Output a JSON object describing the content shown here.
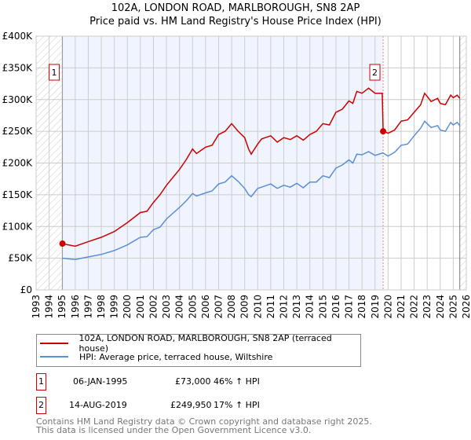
{
  "title": "102A, LONDON ROAD, MARLBOROUGH, SN8 2AP",
  "subtitle": "Price paid vs. HM Land Registry's House Price Index (HPI)",
  "chart_data": {
    "type": "line",
    "title": "102A, LONDON ROAD, MARLBOROUGH, SN8 2AP",
    "xlim": [
      1993,
      2026
    ],
    "ylim": [
      0,
      400000
    ],
    "x_ticks": [
      1993,
      1994,
      1995,
      1996,
      1997,
      1998,
      1999,
      2000,
      2001,
      2002,
      2003,
      2004,
      2005,
      2006,
      2007,
      2008,
      2009,
      2010,
      2011,
      2012,
      2013,
      2014,
      2015,
      2016,
      2017,
      2018,
      2019,
      2020,
      2021,
      2022,
      2023,
      2024,
      2025,
      2026
    ],
    "y_ticks": [
      0,
      50000,
      100000,
      150000,
      200000,
      250000,
      300000,
      350000,
      400000
    ],
    "y_tick_labels": [
      "£0",
      "£50K",
      "£100K",
      "£150K",
      "£200K",
      "£250K",
      "£300K",
      "£350K",
      "£400K"
    ],
    "grid": true,
    "series": [
      {
        "name": "102A, LONDON ROAD, MARLBOROUGH, SN8 2AP (terraced house)",
        "color": "#cc0000",
        "x": [
          1995,
          1996,
          1997,
          1998,
          1999,
          2000,
          2001,
          2001.5,
          2002,
          2002.5,
          2003,
          2004,
          2004.5,
          2005,
          2005.3,
          2006,
          2006.5,
          2007,
          2007.5,
          2008,
          2008.5,
          2009,
          2009.3,
          2009.5,
          2010,
          2010.3,
          2011,
          2011.5,
          2012,
          2012.5,
          2013,
          2013.5,
          2014,
          2014.5,
          2015,
          2015.5,
          2016,
          2016.5,
          2017,
          2017.3,
          2017.6,
          2018,
          2018.5,
          2019,
          2019.55,
          2019.62,
          2020,
          2020.5,
          2021,
          2021.5,
          2022,
          2022.5,
          2022.8,
          2023,
          2023.3,
          2023.8,
          2024,
          2024.4,
          2024.8,
          2025,
          2025.3,
          2025.5
        ],
        "y": [
          73,
          69,
          76,
          83,
          92,
          106,
          122,
          124,
          138,
          150,
          165,
          190,
          205,
          222,
          215,
          225,
          228,
          245,
          250,
          262,
          250,
          240,
          222,
          214,
          230,
          238,
          243,
          233,
          240,
          237,
          243,
          236,
          245,
          250,
          262,
          260,
          280,
          285,
          298,
          294,
          313,
          310,
          318,
          310,
          310,
          250,
          247,
          252,
          266,
          268,
          280,
          292,
          310,
          305,
          297,
          302,
          294,
          292,
          307,
          303,
          307,
          302
        ]
      },
      {
        "name": "HPI: Average price, terraced house, Wiltshire",
        "color": "#5b8fd4",
        "x": [
          1995,
          1996,
          1997,
          1998,
          1999,
          2000,
          2001,
          2001.5,
          2002,
          2002.5,
          2003,
          2004,
          2004.5,
          2005,
          2005.3,
          2006,
          2006.5,
          2007,
          2007.5,
          2008,
          2008.5,
          2009,
          2009.3,
          2009.5,
          2010,
          2010.3,
          2011,
          2011.5,
          2012,
          2012.5,
          2013,
          2013.5,
          2014,
          2014.5,
          2015,
          2015.5,
          2016,
          2016.5,
          2017,
          2017.3,
          2017.6,
          2018,
          2018.5,
          2019,
          2019.6,
          2020,
          2020.5,
          2021,
          2021.5,
          2022,
          2022.5,
          2022.8,
          2023,
          2023.3,
          2023.8,
          2024,
          2024.4,
          2024.8,
          2025,
          2025.3,
          2025.5
        ],
        "y": [
          50,
          48,
          52,
          56,
          62,
          71,
          83,
          84,
          95,
          99,
          112,
          130,
          140,
          152,
          148,
          153,
          156,
          167,
          170,
          180,
          171,
          160,
          150,
          147,
          160,
          162,
          167,
          160,
          165,
          162,
          168,
          161,
          170,
          170,
          180,
          177,
          192,
          197,
          205,
          200,
          214,
          213,
          218,
          212,
          216,
          211,
          217,
          228,
          230,
          243,
          255,
          266,
          262,
          256,
          259,
          252,
          250,
          264,
          260,
          264,
          259
        ]
      }
    ],
    "y_unit": "£K",
    "sales": [
      {
        "label": "1",
        "x": 1995.02,
        "price": 73000
      },
      {
        "label": "2",
        "x": 2019.62,
        "price": 249950
      }
    ],
    "shaded_range": [
      1995.02,
      2019.62
    ],
    "hatched_ranges": [
      [
        1993,
        1995.02
      ],
      [
        2025.5,
        2026
      ]
    ]
  },
  "legend": {
    "property": "102A, LONDON ROAD, MARLBOROUGH, SN8 2AP (terraced house)",
    "hpi": "HPI: Average price, terraced house, Wiltshire"
  },
  "transactions": [
    {
      "num": "1",
      "date": "06-JAN-1995",
      "price": "£73,000",
      "hpi": "46% ↑ HPI"
    },
    {
      "num": "2",
      "date": "14-AUG-2019",
      "price": "£249,950",
      "hpi": "17% ↑ HPI"
    }
  ],
  "footer": [
    "Contains HM Land Registry data © Crown copyright and database right 2025.",
    "This data is licensed under the Open Government Licence v3.0."
  ]
}
